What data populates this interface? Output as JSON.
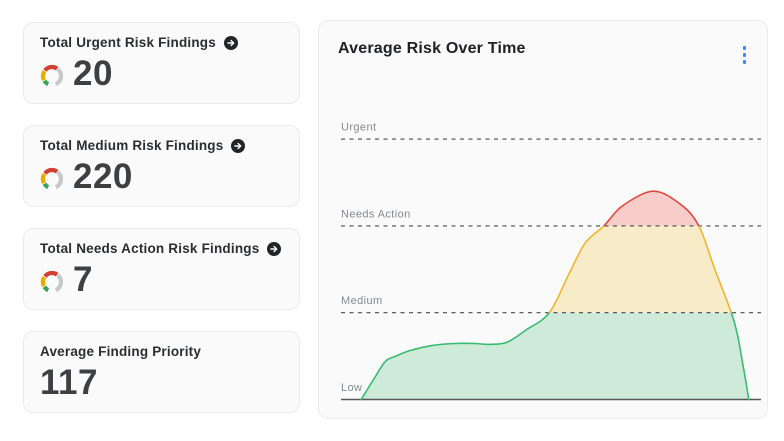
{
  "stat_cards": [
    {
      "title": "Total Urgent Risk Findings",
      "value": "20",
      "arrow_icon": "arrow-right-circle-icon",
      "gauge_icon": "risk-gauge-icon"
    },
    {
      "title": "Total Medium Risk Findings",
      "value": "220",
      "arrow_icon": "arrow-right-circle-icon",
      "gauge_icon": "risk-gauge-icon"
    },
    {
      "title": "Total Needs Action Risk Findings",
      "value": "7",
      "arrow_icon": "arrow-right-circle-icon",
      "gauge_icon": "risk-gauge-icon"
    },
    {
      "title": "Average Finding Priority",
      "value": "117"
    }
  ],
  "icons": {
    "gauge_colors": {
      "green": "#34a853",
      "yellow": "#eaab00",
      "red": "#d23f31",
      "gray": "#c6c8ca"
    },
    "arrow_circle_bg": "#222426",
    "arrow_color": "#ffffff",
    "kebab_color": "#4285f4"
  },
  "chart_card": {
    "title": "Average Risk Over Time",
    "menu_icon": "kebab-menu-icon"
  },
  "chart_data": {
    "type": "area",
    "title": "Average Risk Over Time",
    "grid": false,
    "legend": false,
    "x_axis": {
      "tick_labels_visible": false,
      "range_normalized": [
        0,
        100
      ]
    },
    "y_axis": {
      "unit": "risk level band",
      "thresholds": [
        {
          "label": "Low",
          "value": 0,
          "line_style": "solid"
        },
        {
          "label": "Medium",
          "value": 1,
          "line_style": "dashed"
        },
        {
          "label": "Needs Action",
          "value": 2,
          "line_style": "dashed"
        },
        {
          "label": "Urgent",
          "value": 3,
          "line_style": "dashed"
        }
      ],
      "threshold_line_color": "#47494d",
      "baseline_color": "#54575b"
    },
    "bands": [
      {
        "name": "low-to-medium",
        "range": [
          0,
          1
        ],
        "fill": "#cdebd8",
        "stroke": "#38bb72"
      },
      {
        "name": "medium-to-needs-action",
        "range": [
          1,
          2
        ],
        "fill": "#f8ecc8",
        "stroke": "#f1b42f"
      },
      {
        "name": "needs-action-to-urgent",
        "range": [
          2,
          3
        ],
        "fill": "#f8cdc9",
        "stroke": "#e04a40"
      }
    ],
    "series": [
      {
        "name": "Average Risk",
        "points": [
          [
            4.8,
            0
          ],
          [
            8,
            0.25
          ],
          [
            10.6,
            0.44
          ],
          [
            13.1,
            0.5
          ],
          [
            16.2,
            0.56
          ],
          [
            21.4,
            0.62
          ],
          [
            26.9,
            0.645
          ],
          [
            31.9,
            0.645
          ],
          [
            35.2,
            0.635
          ],
          [
            39.5,
            0.66
          ],
          [
            44,
            0.8
          ],
          [
            49.6,
            1.0
          ],
          [
            54.3,
            1.45
          ],
          [
            58.1,
            1.8
          ],
          [
            62.6,
            2.0
          ],
          [
            67,
            2.23
          ],
          [
            74.3,
            2.4
          ],
          [
            80.8,
            2.25
          ],
          [
            85.2,
            2.0
          ],
          [
            89,
            1.5
          ],
          [
            93.6,
            0.9
          ],
          [
            95.7,
            0.4
          ],
          [
            97.1,
            0
          ]
        ]
      }
    ]
  }
}
